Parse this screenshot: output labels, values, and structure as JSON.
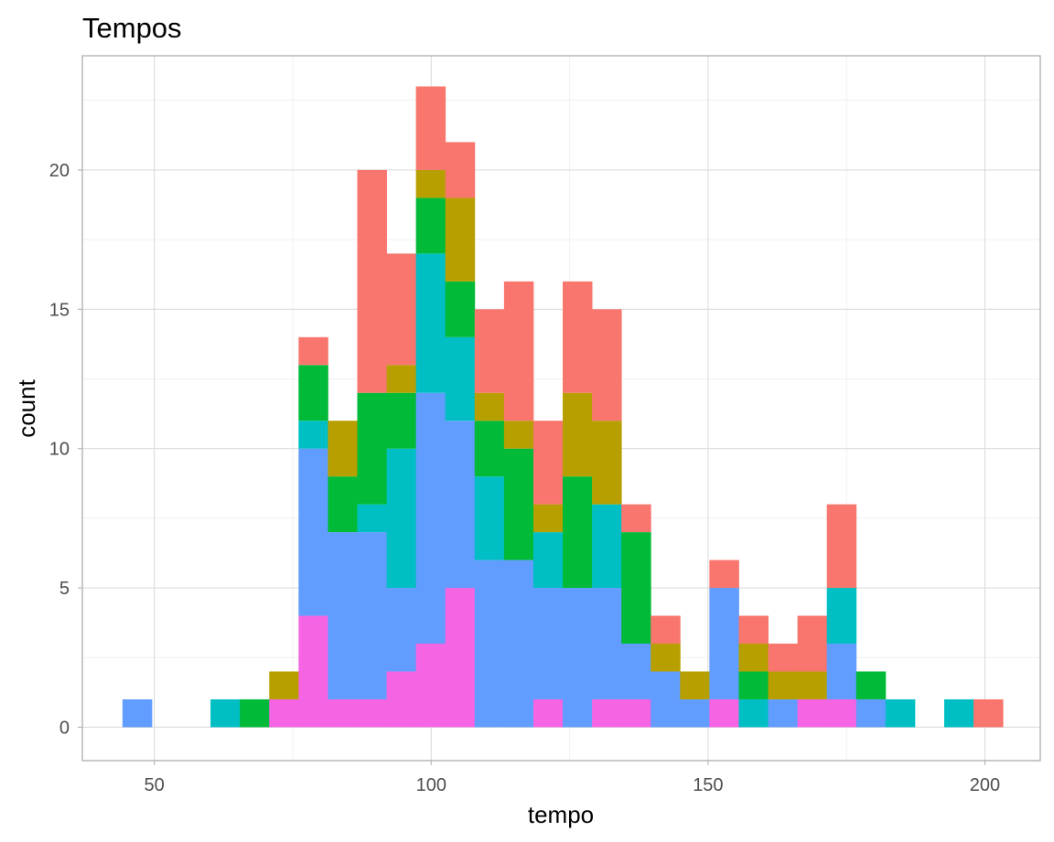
{
  "chart_data": {
    "type": "bar",
    "stacked": true,
    "title": "Tempos",
    "xlabel": "tempo",
    "ylabel": "count",
    "xlim": [
      37,
      210
    ],
    "ylim": [
      -1.2,
      24.1
    ],
    "x_ticks": [
      50,
      100,
      150,
      200
    ],
    "y_ticks": [
      0,
      5,
      10,
      15,
      20
    ],
    "bin_width": 5.3,
    "grid": true,
    "legend": "none",
    "stack_order": [
      "pink",
      "blue",
      "teal",
      "green",
      "olive",
      "salmon"
    ],
    "colors": {
      "pink": "#F564E3",
      "blue": "#619CFF",
      "teal": "#00BFC4",
      "green": "#00BA38",
      "olive": "#B79F00",
      "salmon": "#F8766D"
    },
    "bins": [
      {
        "x": 46.9,
        "pink": 0,
        "blue": 1,
        "teal": 0,
        "green": 0,
        "olive": 0,
        "salmon": 0
      },
      {
        "x": 52.2,
        "pink": 0,
        "blue": 0,
        "teal": 0,
        "green": 0,
        "olive": 0,
        "salmon": 0
      },
      {
        "x": 57.5,
        "pink": 0,
        "blue": 0,
        "teal": 0,
        "green": 0,
        "olive": 0,
        "salmon": 0
      },
      {
        "x": 62.8,
        "pink": 0,
        "blue": 0,
        "teal": 1,
        "green": 0,
        "olive": 0,
        "salmon": 0
      },
      {
        "x": 68.1,
        "pink": 0,
        "blue": 0,
        "teal": 0,
        "green": 1,
        "olive": 0,
        "salmon": 0
      },
      {
        "x": 73.4,
        "pink": 1,
        "blue": 0,
        "teal": 0,
        "green": 0,
        "olive": 1,
        "salmon": 0
      },
      {
        "x": 78.7,
        "pink": 4,
        "blue": 6,
        "teal": 1,
        "green": 2,
        "olive": 0,
        "salmon": 1
      },
      {
        "x": 84.0,
        "pink": 1,
        "blue": 6,
        "teal": 0,
        "green": 2,
        "olive": 2,
        "salmon": 0
      },
      {
        "x": 89.3,
        "pink": 1,
        "blue": 6,
        "teal": 1,
        "green": 4,
        "olive": 0,
        "salmon": 8
      },
      {
        "x": 94.6,
        "pink": 2,
        "blue": 3,
        "teal": 5,
        "green": 2,
        "olive": 1,
        "salmon": 4
      },
      {
        "x": 99.9,
        "pink": 3,
        "blue": 9,
        "teal": 5,
        "green": 2,
        "olive": 1,
        "salmon": 3
      },
      {
        "x": 105.2,
        "pink": 5,
        "blue": 6,
        "teal": 3,
        "green": 2,
        "olive": 3,
        "salmon": 2
      },
      {
        "x": 110.5,
        "pink": 0,
        "blue": 6,
        "teal": 3,
        "green": 2,
        "olive": 1,
        "salmon": 3
      },
      {
        "x": 115.8,
        "pink": 0,
        "blue": 6,
        "teal": 0,
        "green": 4,
        "olive": 1,
        "salmon": 5
      },
      {
        "x": 121.1,
        "pink": 1,
        "blue": 4,
        "teal": 2,
        "green": 0,
        "olive": 1,
        "salmon": 3
      },
      {
        "x": 126.4,
        "pink": 0,
        "blue": 5,
        "teal": 0,
        "green": 4,
        "olive": 3,
        "salmon": 4
      },
      {
        "x": 131.7,
        "pink": 1,
        "blue": 4,
        "teal": 3,
        "green": 0,
        "olive": 3,
        "salmon": 4
      },
      {
        "x": 137.0,
        "pink": 1,
        "blue": 2,
        "teal": 0,
        "green": 4,
        "olive": 0,
        "salmon": 1
      },
      {
        "x": 142.3,
        "pink": 0,
        "blue": 2,
        "teal": 0,
        "green": 0,
        "olive": 1,
        "salmon": 1
      },
      {
        "x": 147.6,
        "pink": 0,
        "blue": 1,
        "teal": 0,
        "green": 0,
        "olive": 1,
        "salmon": 0
      },
      {
        "x": 152.9,
        "pink": 1,
        "blue": 4,
        "teal": 0,
        "green": 0,
        "olive": 0,
        "salmon": 1
      },
      {
        "x": 158.2,
        "pink": 0,
        "blue": 0,
        "teal": 1,
        "green": 1,
        "olive": 1,
        "salmon": 1
      },
      {
        "x": 163.5,
        "pink": 0,
        "blue": 1,
        "teal": 0,
        "green": 0,
        "olive": 1,
        "salmon": 1
      },
      {
        "x": 168.8,
        "pink": 1,
        "blue": 0,
        "teal": 0,
        "green": 0,
        "olive": 1,
        "salmon": 2
      },
      {
        "x": 174.1,
        "pink": 1,
        "blue": 2,
        "teal": 2,
        "green": 0,
        "olive": 0,
        "salmon": 3
      },
      {
        "x": 179.4,
        "pink": 0,
        "blue": 1,
        "teal": 0,
        "green": 1,
        "olive": 0,
        "salmon": 0
      },
      {
        "x": 184.7,
        "pink": 0,
        "blue": 0,
        "teal": 1,
        "green": 0,
        "olive": 0,
        "salmon": 0
      },
      {
        "x": 190.0,
        "pink": 0,
        "blue": 0,
        "teal": 0,
        "green": 0,
        "olive": 0,
        "salmon": 0
      },
      {
        "x": 195.3,
        "pink": 0,
        "blue": 0,
        "teal": 1,
        "green": 0,
        "olive": 0,
        "salmon": 0
      },
      {
        "x": 200.6,
        "pink": 0,
        "blue": 0,
        "teal": 0,
        "green": 0,
        "olive": 0,
        "salmon": 1
      }
    ]
  }
}
